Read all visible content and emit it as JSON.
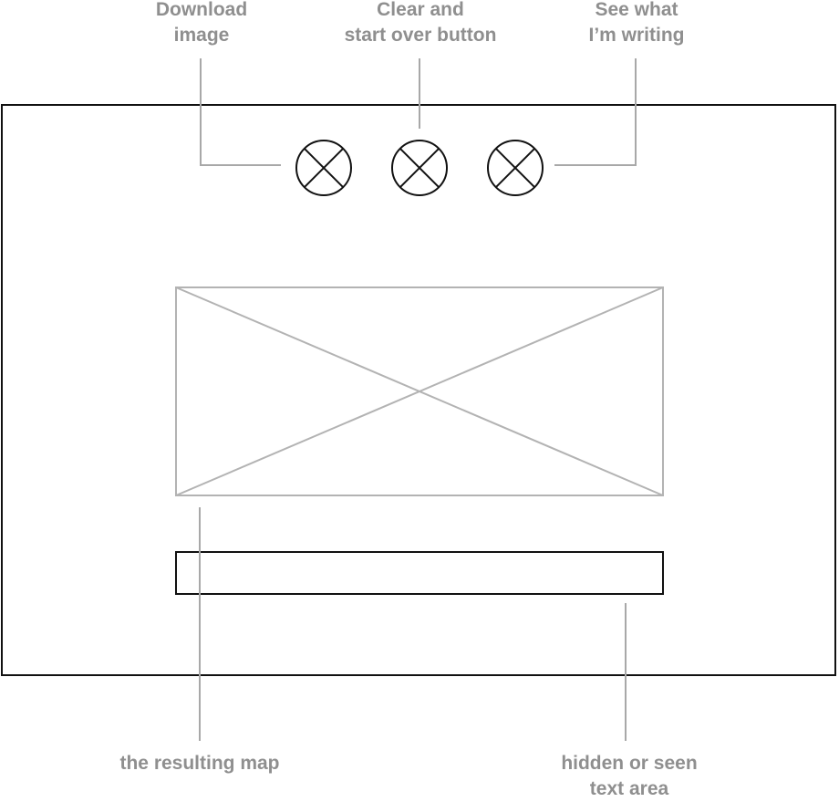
{
  "annotations": {
    "download": {
      "line1": "Download",
      "line2": "image"
    },
    "clear": {
      "line1": "Clear and",
      "line2": "start over button"
    },
    "see": {
      "line1": "See what",
      "line2": "I’m writing"
    },
    "map": {
      "line1": "the resulting map"
    },
    "text_area": {
      "line1": "hidden or seen",
      "line2": "text area"
    }
  },
  "buttons": [
    {
      "name": "download-image-button",
      "icon": "x-circle-icon"
    },
    {
      "name": "clear-start-over-button",
      "icon": "x-circle-icon"
    },
    {
      "name": "see-what-im-writing-button",
      "icon": "x-circle-icon"
    }
  ],
  "colors": {
    "annotation_text": "#8f8f8f",
    "leader_line": "#a8a8a8",
    "wire_stroke": "#111111",
    "placeholder_stroke": "#b3b3b3"
  }
}
